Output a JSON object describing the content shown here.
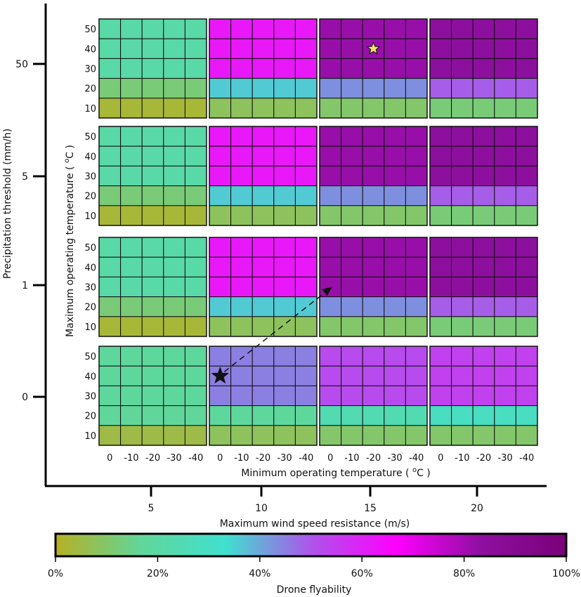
{
  "chart_data": {
    "type": "heatmap",
    "title": "",
    "outer_x": {
      "label": "Maximum wind speed resistance (m/s)",
      "ticks": [
        "5",
        "10",
        "15",
        "20"
      ]
    },
    "outer_y": {
      "label": "Precipitation threshold (mm/h)",
      "ticks_bottom_to_top": [
        "0",
        "1",
        "5",
        "50"
      ]
    },
    "inner_x": {
      "label": "Minimum operating temperature",
      "unit_prefix": "o",
      "unit_suffix": "C",
      "ticks": [
        "0",
        "-10",
        "-20",
        "-30",
        "-40"
      ]
    },
    "inner_y": {
      "label": "Maximum operating temperature",
      "unit_prefix": "o",
      "unit_suffix": "C",
      "ticks_top_to_bottom": [
        "50",
        "40",
        "30",
        "20",
        "10"
      ]
    },
    "colorbar": {
      "label": "Drone flyability",
      "ticks": [
        "0%",
        "20%",
        "40%",
        "60%",
        "80%",
        "100%"
      ],
      "range": [
        0,
        100
      ],
      "stops": [
        "#b6b023",
        "#61d699",
        "#40e0d0",
        "#ad55ea",
        "#ff00ff",
        "#8e10a0",
        "#790179"
      ]
    },
    "panels_note": "rows ordered by precipitation 50,5,1,0; columns by wind 5,10,15,20; each band value is flyability % for max-temp rows 50/40/30 (top band), 20, 10",
    "panels": [
      [
        {
          "wind": "5",
          "top": 21,
          "band20": 12,
          "band10": 3
        },
        {
          "wind": "10",
          "top": 62,
          "band20": 36,
          "band10": 8
        },
        {
          "wind": "15",
          "top": 82,
          "band20": 43,
          "band10": 10
        },
        {
          "wind": "20",
          "top": 84,
          "band20": 49,
          "band10": 12
        }
      ],
      [
        {
          "wind": "5",
          "top": 21,
          "band20": 12,
          "band10": 3
        },
        {
          "wind": "10",
          "top": 62,
          "band20": 36,
          "band10": 8
        },
        {
          "wind": "15",
          "top": 82,
          "band20": 43,
          "band10": 10
        },
        {
          "wind": "20",
          "top": 84,
          "band20": 49,
          "band10": 12
        }
      ],
      [
        {
          "wind": "5",
          "top": 21,
          "band20": 12,
          "band10": 3
        },
        {
          "wind": "10",
          "top": 62,
          "band20": 36,
          "band10": 8
        },
        {
          "wind": "15",
          "top": 82,
          "band20": 43,
          "band10": 10
        },
        {
          "wind": "20",
          "top": 84,
          "band20": 49,
          "band10": 12
        }
      ],
      [
        {
          "wind": "5",
          "top": 18,
          "band20": 17,
          "band10": 5
        },
        {
          "wind": "10",
          "top": 45,
          "band20": 18,
          "band10": 8
        },
        {
          "wind": "15",
          "top": 52,
          "band20": 24,
          "band10": 10
        },
        {
          "wind": "20",
          "top": 54,
          "band20": 29,
          "band10": 10
        }
      ]
    ],
    "annotations": [
      {
        "type": "star",
        "color": "#111111",
        "panel": [
          3,
          1
        ],
        "min_temp": "0",
        "max_temp": "40"
      },
      {
        "type": "star",
        "color": "#f4e06a",
        "panel": [
          0,
          2
        ],
        "min_temp": "-20",
        "max_temp": "40"
      },
      {
        "type": "arrow",
        "style": "dashed",
        "from_panel": [
          3,
          1
        ],
        "to_panel": [
          2,
          2
        ]
      }
    ]
  }
}
